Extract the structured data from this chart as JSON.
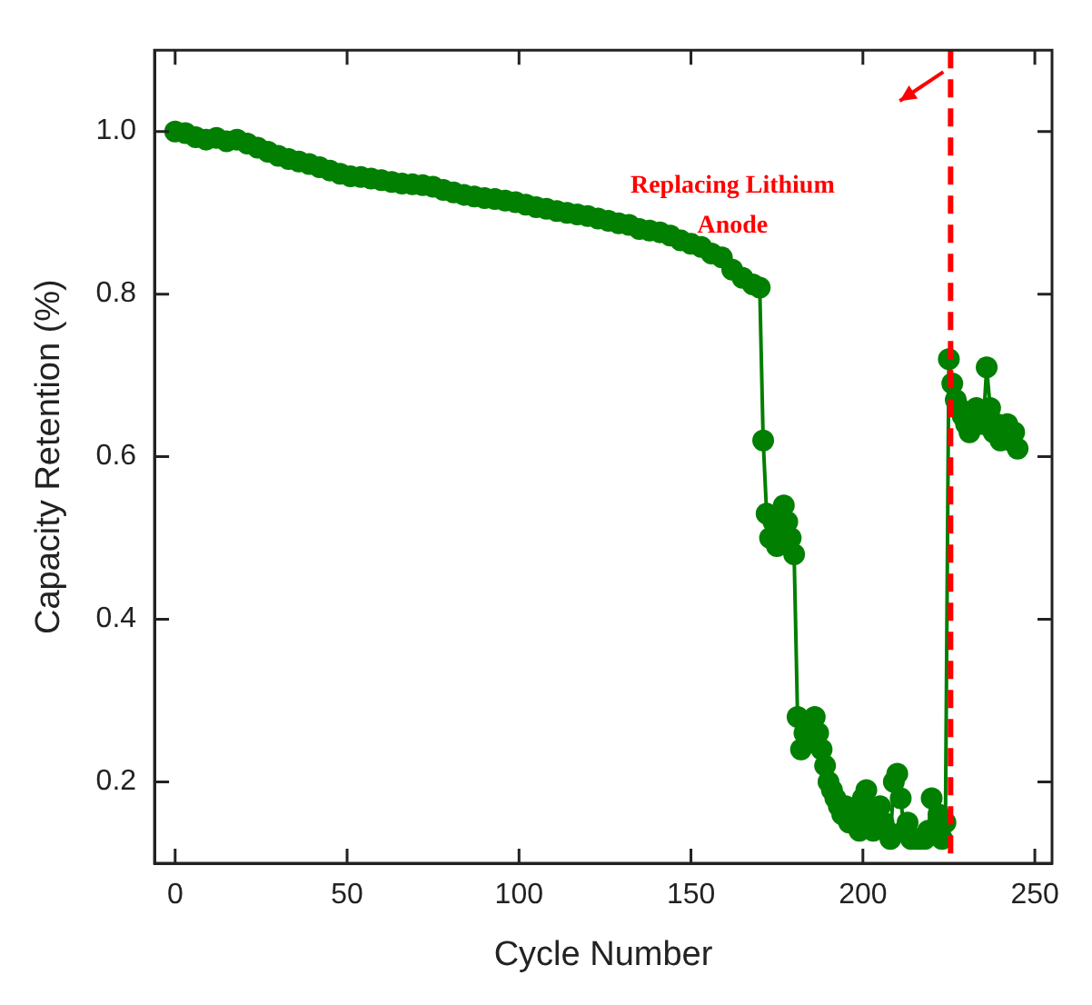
{
  "chart_data": {
    "type": "line",
    "xlabel": "Cycle Number",
    "ylabel": "Capacity Retention (%)",
    "x": [
      0,
      3,
      6,
      9,
      12,
      15,
      18,
      21,
      24,
      27,
      30,
      33,
      36,
      39,
      42,
      45,
      48,
      51,
      54,
      57,
      60,
      63,
      66,
      69,
      72,
      75,
      78,
      81,
      84,
      87,
      90,
      93,
      96,
      99,
      102,
      105,
      108,
      111,
      114,
      117,
      120,
      123,
      126,
      129,
      132,
      135,
      138,
      141,
      144,
      147,
      150,
      153,
      156,
      159,
      162,
      165,
      168,
      170,
      171,
      172,
      173,
      174,
      175,
      176,
      177,
      178,
      179,
      180,
      181,
      182,
      183,
      184,
      185,
      186,
      187,
      188,
      189,
      190,
      191,
      192,
      193,
      194,
      195,
      196,
      197,
      198,
      199,
      200,
      201,
      202,
      203,
      204,
      205,
      206,
      207,
      208,
      209,
      210,
      211,
      212,
      213,
      214,
      215,
      216,
      217,
      218,
      219,
      220,
      221,
      222,
      223,
      224,
      225,
      226,
      227,
      228,
      229,
      230,
      231,
      232,
      233,
      234,
      235,
      236,
      237,
      238,
      239,
      240,
      241,
      242,
      243,
      244,
      245
    ],
    "series": [
      {
        "color": "#007f00",
        "values": [
          1.0,
          0.998,
          0.993,
          0.99,
          0.992,
          0.988,
          0.99,
          0.985,
          0.98,
          0.975,
          0.97,
          0.966,
          0.963,
          0.96,
          0.956,
          0.952,
          0.948,
          0.945,
          0.944,
          0.942,
          0.94,
          0.938,
          0.936,
          0.935,
          0.934,
          0.932,
          0.928,
          0.925,
          0.922,
          0.92,
          0.918,
          0.917,
          0.915,
          0.913,
          0.91,
          0.907,
          0.905,
          0.902,
          0.9,
          0.898,
          0.896,
          0.893,
          0.89,
          0.887,
          0.885,
          0.88,
          0.878,
          0.876,
          0.872,
          0.866,
          0.862,
          0.858,
          0.85,
          0.845,
          0.83,
          0.82,
          0.812,
          0.808,
          0.62,
          0.53,
          0.5,
          0.52,
          0.49,
          0.51,
          0.54,
          0.52,
          0.5,
          0.48,
          0.28,
          0.24,
          0.26,
          0.25,
          0.27,
          0.28,
          0.26,
          0.24,
          0.22,
          0.2,
          0.19,
          0.18,
          0.17,
          0.16,
          0.17,
          0.15,
          0.16,
          0.15,
          0.14,
          0.18,
          0.19,
          0.16,
          0.14,
          0.15,
          0.17,
          0.15,
          0.14,
          0.13,
          0.2,
          0.21,
          0.18,
          0.14,
          0.15,
          0.13,
          0.13,
          0.13,
          0.13,
          0.13,
          0.14,
          0.18,
          0.14,
          0.16,
          0.13,
          0.15,
          0.72,
          0.69,
          0.67,
          0.66,
          0.65,
          0.64,
          0.63,
          0.64,
          0.66,
          0.65,
          0.64,
          0.71,
          0.66,
          0.63,
          0.64,
          0.62,
          0.63,
          0.64,
          0.62,
          0.63,
          0.61
        ]
      }
    ],
    "xlim": [
      -6,
      255
    ],
    "xticks": [
      0,
      50,
      100,
      150,
      200,
      250
    ],
    "ylim": [
      0.1,
      1.1
    ],
    "yticks": [
      {
        "value": 0.2,
        "label": "0.2"
      },
      {
        "value": 0.4,
        "label": "0.4"
      },
      {
        "value": 0.6,
        "label": "0.6"
      },
      {
        "value": 0.8,
        "label": "0.8"
      },
      {
        "value": 1.0,
        "label": "1.0"
      }
    ],
    "ref_lines": [
      {
        "axis": "x",
        "value": 225.5,
        "label": "Replacing Lithium Anode",
        "color": "#ff0000",
        "line_style": "dashed"
      }
    ],
    "marker": "circle",
    "line_style": "solid",
    "legend": false
  }
}
